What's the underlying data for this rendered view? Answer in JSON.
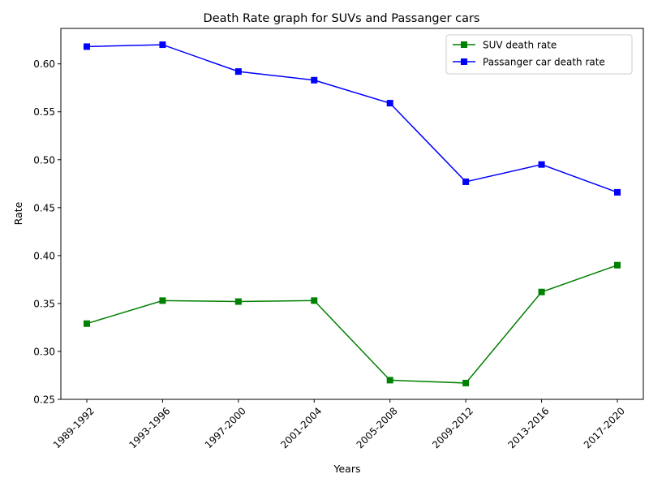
{
  "chart_data": {
    "type": "line",
    "title": "Death Rate graph for SUVs and Passanger cars",
    "xlabel": "Years",
    "ylabel": "Rate",
    "categories": [
      "1989-1992",
      "1993-1996",
      "1997-2000",
      "2001-2004",
      "2005-2008",
      "2009-2012",
      "2013-2016",
      "2017-2020"
    ],
    "ylim": [
      0.25,
      0.637
    ],
    "yticks": [
      0.25,
      0.3,
      0.35,
      0.4,
      0.45,
      0.5,
      0.55,
      0.6
    ],
    "ytick_labels": [
      "0.25",
      "0.30",
      "0.35",
      "0.40",
      "0.45",
      "0.50",
      "0.55",
      "0.60"
    ],
    "grid": false,
    "legend_position": "top-right",
    "series": [
      {
        "name": "SUV death rate",
        "color": "#008000",
        "marker": "square",
        "values": [
          0.329,
          0.353,
          0.352,
          0.353,
          0.27,
          0.267,
          0.362,
          0.39
        ]
      },
      {
        "name": "Passanger car death rate",
        "color": "#0000ff",
        "marker": "square",
        "values": [
          0.618,
          0.62,
          0.592,
          0.583,
          0.559,
          0.477,
          0.495,
          0.466
        ]
      }
    ]
  }
}
